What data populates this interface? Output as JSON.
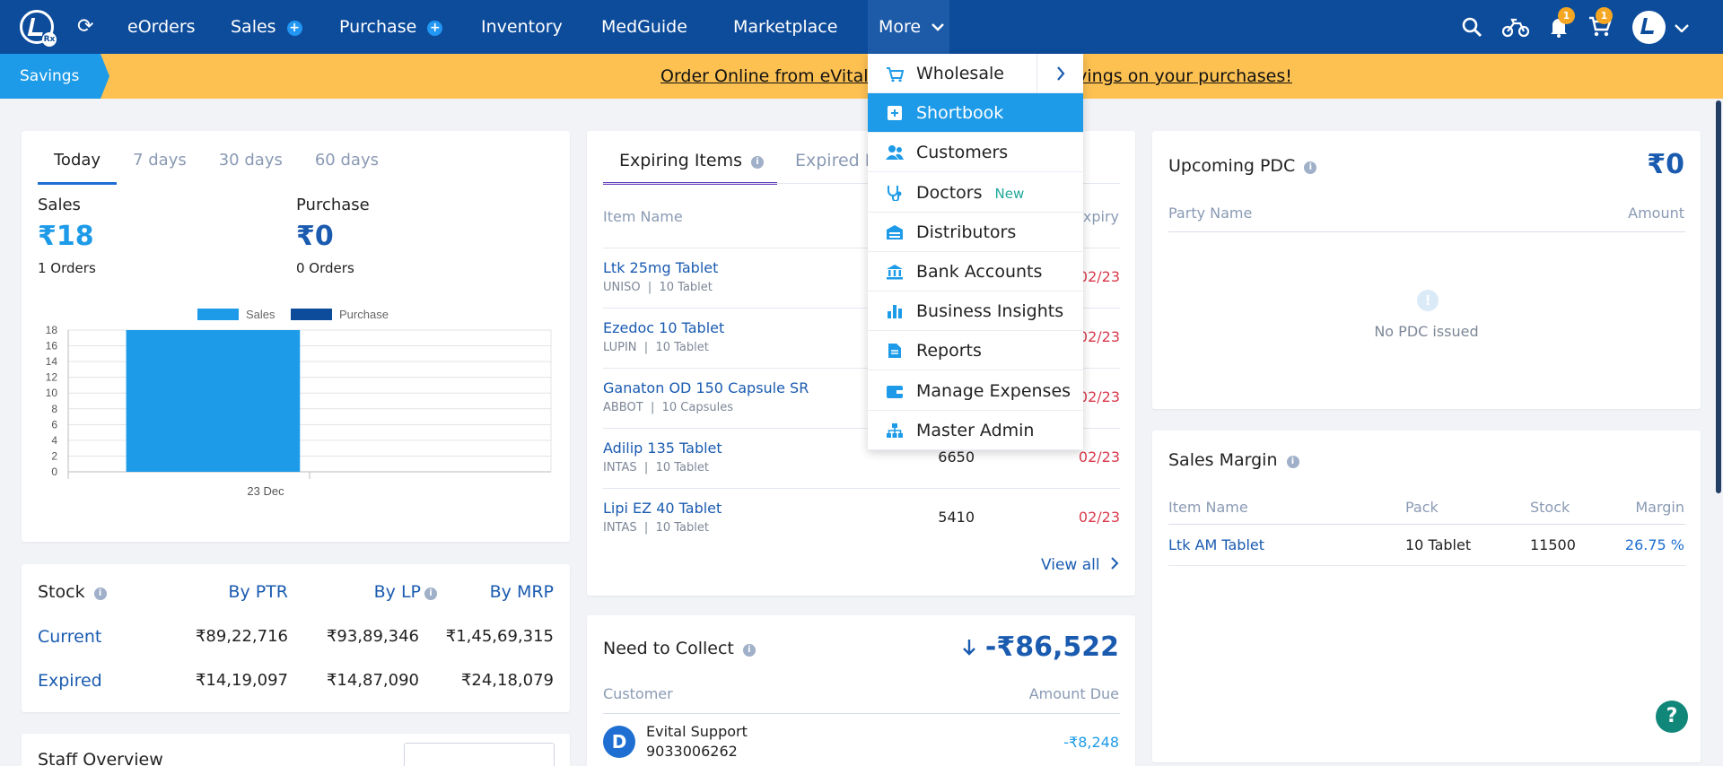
{
  "nav": {
    "logo_badge": "Rx",
    "items": [
      "eOrders",
      "Sales",
      "Purchase",
      "Inventory",
      "MedGuide",
      "Marketplace"
    ],
    "sales_plus": "+",
    "purchase_plus": "+",
    "more": "More",
    "notif_count": "1",
    "cart_count": "1"
  },
  "banner": {
    "tag": "Savings",
    "text": "Order Online from eVitalRx Marketplace & get savings on your purchases!"
  },
  "dropdown": {
    "items": [
      {
        "label": "Wholesale",
        "icon": "cart-icon"
      },
      {
        "label": "Shortbook",
        "icon": "plus-box-icon"
      },
      {
        "label": "Customers",
        "icon": "users-icon"
      },
      {
        "label": "Doctors",
        "icon": "stethoscope-icon",
        "tag": "New"
      },
      {
        "label": "Distributors",
        "icon": "warehouse-icon"
      },
      {
        "label": "Bank Accounts",
        "icon": "bank-icon"
      },
      {
        "label": "Business Insights",
        "icon": "bar-chart-icon"
      },
      {
        "label": "Reports",
        "icon": "document-icon"
      },
      {
        "label": "Manage Expenses",
        "icon": "wallet-icon"
      },
      {
        "label": "Master Admin",
        "icon": "org-icon"
      }
    ]
  },
  "summary": {
    "tabs": [
      "Today",
      "7 days",
      "30 days",
      "60 days"
    ],
    "sales_label": "Sales",
    "sales_value": "₹18",
    "sales_orders": "1 Orders",
    "purchase_label": "Purchase",
    "purchase_value": "₹0",
    "purchase_orders": "0 Orders"
  },
  "chart_data": {
    "type": "bar",
    "categories": [
      "23 Dec"
    ],
    "series": [
      {
        "name": "Sales",
        "values": [
          18
        ],
        "color": "#1e9be8"
      },
      {
        "name": "Purchase",
        "values": [
          0
        ],
        "color": "#0d4c9b"
      }
    ],
    "yticks": [
      0,
      2,
      4,
      6,
      8,
      10,
      12,
      14,
      16,
      18
    ],
    "ylim": [
      0,
      18
    ],
    "legend": "top-center",
    "grid": true
  },
  "stock": {
    "title": "Stock",
    "cols": [
      "By PTR",
      "By LP",
      "By MRP"
    ],
    "rows": [
      {
        "label": "Current",
        "values": [
          "₹89,22,716",
          "₹93,89,346",
          "₹1,45,69,315"
        ]
      },
      {
        "label": "Expired",
        "values": [
          "₹14,19,097",
          "₹14,87,090",
          "₹24,18,079"
        ]
      }
    ]
  },
  "staff_partial": "Staff Overview",
  "expiring": {
    "tab_active": "Expiring Items",
    "tab_other": "Expired Items",
    "col_item": "Item Name",
    "col_expiry": "Expiry",
    "rows": [
      {
        "name": "Ltk 25mg Tablet",
        "mfr": "UNISO",
        "pack": "10 Tablet",
        "qty": "",
        "expiry": "02/23"
      },
      {
        "name": "Ezedoc 10 Tablet",
        "mfr": "LUPIN",
        "pack": "10 Tablet",
        "qty": "",
        "expiry": "02/23"
      },
      {
        "name": "Ganaton OD 150 Capsule SR",
        "mfr": "ABBOT",
        "pack": "10 Capsules",
        "qty": "",
        "expiry": "02/23"
      },
      {
        "name": "Adilip 135 Tablet",
        "mfr": "INTAS",
        "pack": "10 Tablet",
        "qty": "6650",
        "expiry": "02/23"
      },
      {
        "name": "Lipi EZ 40 Tablet",
        "mfr": "INTAS",
        "pack": "10 Tablet",
        "qty": "5410",
        "expiry": "02/23"
      }
    ],
    "view_all": "View all"
  },
  "collect": {
    "title": "Need to Collect",
    "amount": "-₹86,522",
    "col_customer": "Customer",
    "col_amount": "Amount Due",
    "rows": [
      {
        "initial": "D",
        "name": "Evital Support",
        "phone": "9033006262",
        "amount": "-₹8,248"
      }
    ]
  },
  "pdc": {
    "title": "Upcoming PDC",
    "amount": "₹0",
    "col_party": "Party Name",
    "col_amount": "Amount",
    "empty": "No PDC issued"
  },
  "margin": {
    "title": "Sales Margin",
    "cols": [
      "Item Name",
      "Pack",
      "Stock",
      "Margin"
    ],
    "rows": [
      {
        "item": "Ltk AM Tablet",
        "pack": "10 Tablet",
        "stock": "11500",
        "margin": "26.75 %"
      }
    ]
  },
  "help": "?"
}
